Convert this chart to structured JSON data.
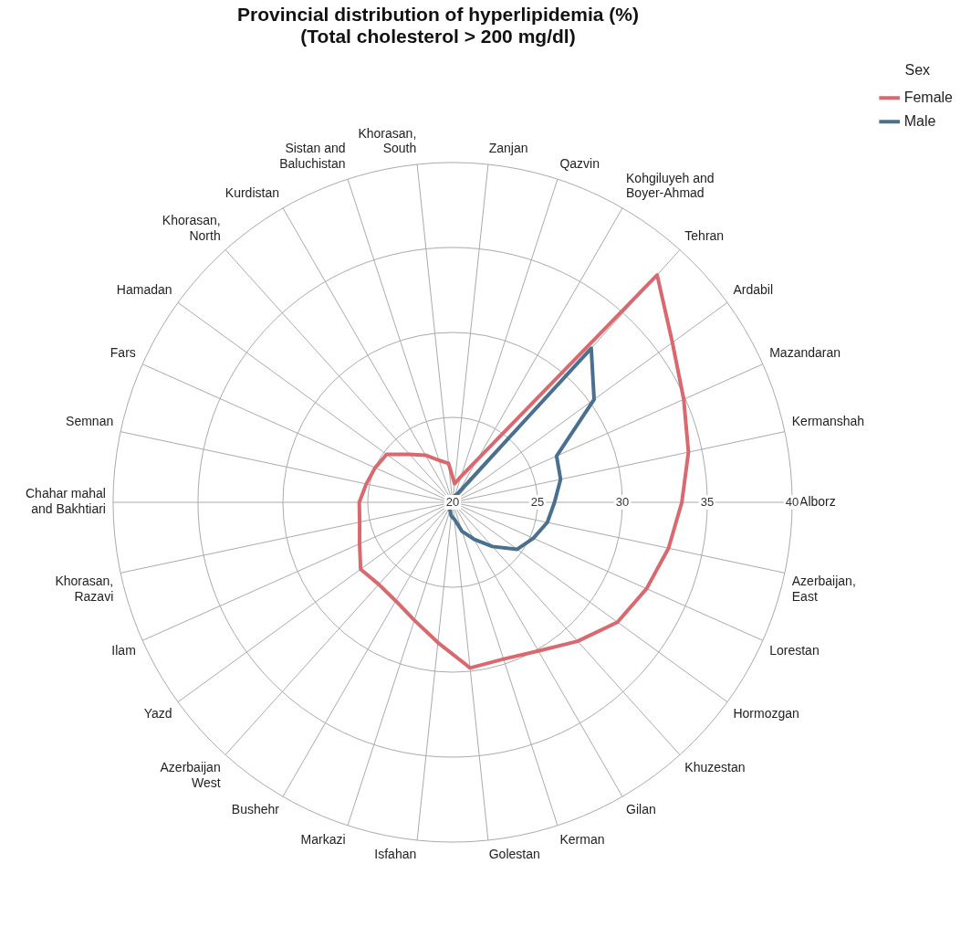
{
  "chart_data": {
    "type": "radar",
    "title": "Provincial distribution of hyperlipidemia (%)",
    "subtitle": "(Total cholesterol > 200 mg/dl)",
    "legend_title": "Sex",
    "legend": "right",
    "categories": [
      "Zanjan",
      "Qazvin",
      "Kohgiluyeh and Boyer-Ahmad",
      "Tehran",
      "Ardabil",
      "Mazandaran",
      "Kermanshah",
      "Alborz",
      "Azerbaijan, East",
      "Lorestan",
      "Hormozgan",
      "Khuzestan",
      "Gilan",
      "Kerman",
      "Golestan",
      "Isfahan",
      "Markazi",
      "Bushehr",
      "Azerbaijan West",
      "Yazd",
      "Ilam",
      "Khorasan, Razavi",
      "Chahar mahal and Bakhtiari",
      "Semnan",
      "Fars",
      "Hamadan",
      "Khorasan, North",
      "Kurdistan",
      "Sistan and Baluchistan",
      "Khorasan, South"
    ],
    "series": [
      {
        "name": "Female",
        "color": "#d9696e",
        "values": [
          21.1,
          21.6,
          22.9,
          38.0,
          36.0,
          34.9,
          34.2,
          33.5,
          33.0,
          32.5,
          32.0,
          31.0,
          30.1,
          29.7,
          29.8,
          28.3,
          27.3,
          26.7,
          26.5,
          26.7,
          26.0,
          25.6,
          25.5,
          25.2,
          25.0,
          24.8,
          23.8,
          23.2,
          22.6,
          22.3
        ]
      },
      {
        "name": "Male",
        "color": "#4a7090",
        "values": [
          20.3,
          20.4,
          20.6,
          32.2,
          30.3,
          26.7,
          26.5,
          26.0,
          25.7,
          25.2,
          24.7,
          23.5,
          22.5,
          21.8,
          21.0,
          20.8,
          20.5,
          20.4,
          20.3,
          20.3,
          20.2,
          20.2,
          20.2,
          20.2,
          20.2,
          20.2,
          20.2,
          20.2,
          20.2,
          20.2
        ]
      }
    ],
    "ylim": [
      20,
      40
    ],
    "yticks": [
      20,
      25,
      30,
      35,
      40
    ],
    "grid": true,
    "line_style": "solid",
    "marker": "none"
  }
}
